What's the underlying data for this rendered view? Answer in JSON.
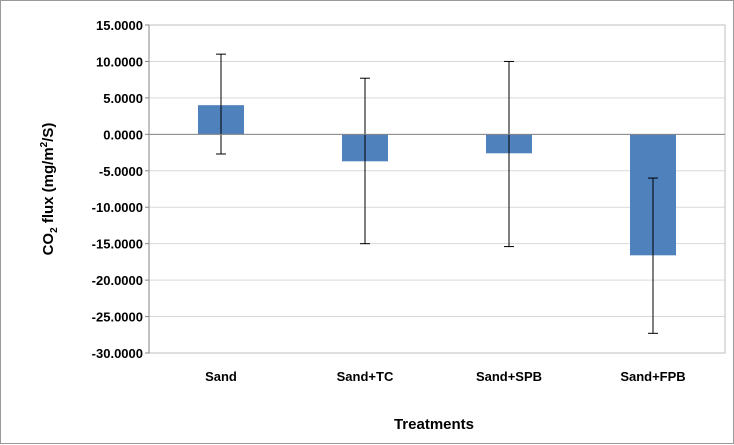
{
  "chart_data": {
    "type": "bar",
    "categories": [
      "Sand",
      "Sand+TC",
      "Sand+SPB",
      "Sand+FPB"
    ],
    "series": [
      {
        "values": [
          4.0,
          -3.7,
          -2.6,
          -16.6
        ],
        "error_low": [
          -2.7,
          -15.0,
          -15.4,
          -27.3
        ],
        "error_high": [
          11.0,
          7.7,
          10.0,
          -6.0
        ]
      }
    ],
    "ylim": [
      -30,
      15
    ],
    "yticks": [
      15,
      10,
      5,
      0,
      -5,
      -10,
      -15,
      -20,
      -25,
      -30
    ],
    "ytick_labels": [
      "15.0000",
      "10.0000",
      "5.0000",
      "0.0000",
      "-5.0000",
      "-10.0000",
      "-15.0000",
      "-20.0000",
      "-25.0000",
      "-30.0000"
    ],
    "xlabel": "Treatments",
    "ylabel": {
      "prefix": "CO",
      "sub": "2",
      "middle": " flux (mg/m",
      "sup": "2",
      "suffix": "/S)"
    },
    "grid": true,
    "bar_color": "#4f81bd",
    "grid_color": "#d9d9d9"
  }
}
